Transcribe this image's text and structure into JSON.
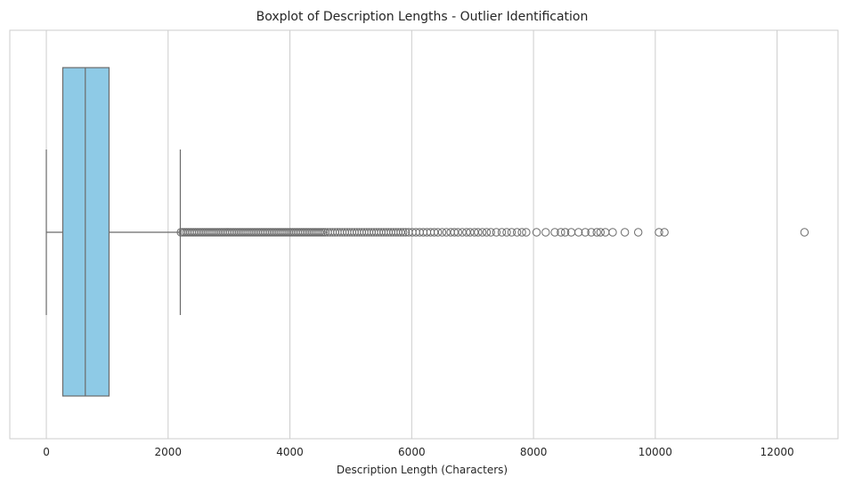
{
  "chart_data": {
    "type": "boxplot",
    "orientation": "horizontal",
    "title": "Boxplot of Description Lengths - Outlier Identification",
    "xlabel": "Description Length (Characters)",
    "ylabel": "",
    "xlim": [
      -600,
      13000
    ],
    "xticks": [
      0,
      2000,
      4000,
      6000,
      8000,
      10000,
      12000
    ],
    "xtick_labels": [
      "0",
      "2000",
      "4000",
      "6000",
      "8000",
      "10000",
      "12000"
    ],
    "grid": "vertical",
    "colors": {
      "box_fill": "#8ecae6",
      "line": "#6b6b6b",
      "grid": "#cccccc",
      "frame": "#cccccc"
    },
    "box": {
      "whisker_low": 0,
      "q1": 270,
      "median": 640,
      "q3": 1030,
      "whisker_high": 2200
    },
    "outliers": [
      2210,
      2240,
      2270,
      2300,
      2330,
      2360,
      2390,
      2420,
      2450,
      2480,
      2510,
      2540,
      2570,
      2600,
      2630,
      2660,
      2690,
      2720,
      2750,
      2780,
      2810,
      2840,
      2870,
      2900,
      2930,
      2960,
      2990,
      3020,
      3050,
      3080,
      3110,
      3140,
      3170,
      3200,
      3230,
      3260,
      3290,
      3320,
      3350,
      3380,
      3410,
      3440,
      3470,
      3500,
      3530,
      3560,
      3590,
      3620,
      3650,
      3680,
      3710,
      3740,
      3770,
      3800,
      3830,
      3860,
      3890,
      3920,
      3950,
      3980,
      4010,
      4040,
      4070,
      4100,
      4130,
      4160,
      4190,
      4220,
      4250,
      4280,
      4310,
      4340,
      4370,
      4400,
      4430,
      4460,
      4490,
      4520,
      4550,
      4580,
      4620,
      4660,
      4700,
      4740,
      4780,
      4820,
      4860,
      4900,
      4940,
      4980,
      5020,
      5060,
      5100,
      5140,
      5180,
      5220,
      5260,
      5300,
      5340,
      5380,
      5420,
      5460,
      5500,
      5540,
      5580,
      5620,
      5660,
      5700,
      5740,
      5780,
      5820,
      5860,
      5900,
      5950,
      6010,
      6070,
      6130,
      6190,
      6250,
      6310,
      6370,
      6430,
      6500,
      6570,
      6640,
      6700,
      6760,
      6830,
      6900,
      6960,
      7030,
      7090,
      7160,
      7230,
      7300,
      7390,
      7480,
      7560,
      7640,
      7730,
      7810,
      7880,
      8050,
      8200,
      8350,
      8450,
      8520,
      8620,
      8740,
      8850,
      8950,
      9040,
      9100,
      9180,
      9300,
      9500,
      9720,
      10060,
      10150,
      12450
    ]
  }
}
